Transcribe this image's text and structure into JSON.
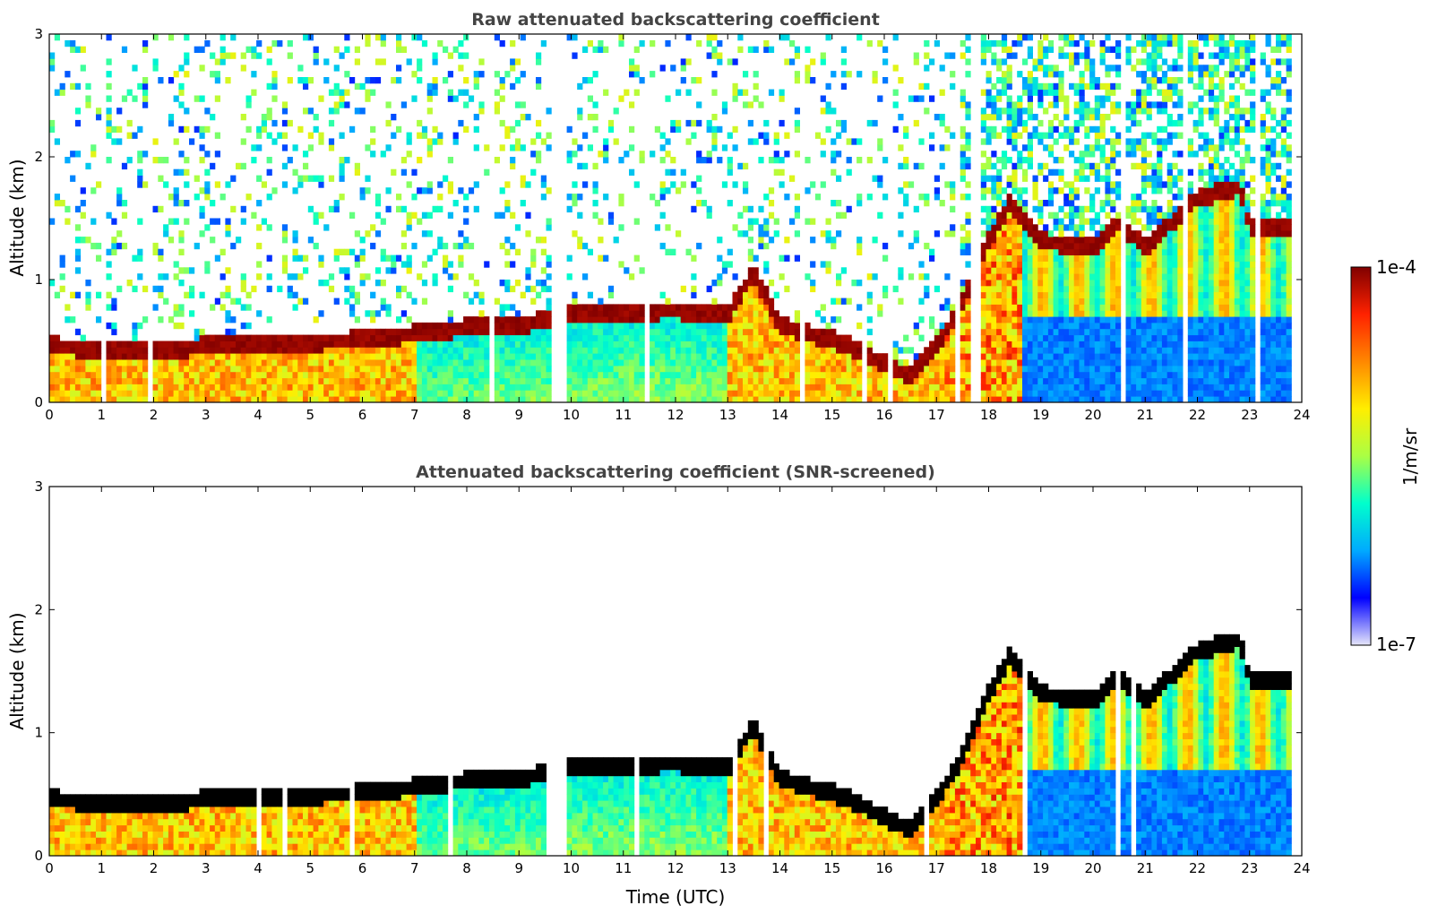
{
  "chart_data": [
    {
      "type": "heatmap",
      "title": "Raw attenuated backscattering coefficient",
      "xlabel": "",
      "ylabel": "Altitude (km)",
      "xlim": [
        0,
        24
      ],
      "ylim": [
        0,
        3
      ],
      "xticks": [
        "0",
        "1",
        "2",
        "3",
        "4",
        "5",
        "6",
        "7",
        "8",
        "9",
        "10",
        "11",
        "12",
        "13",
        "14",
        "15",
        "16",
        "17",
        "18",
        "19",
        "20",
        "21",
        "22",
        "23",
        "24"
      ],
      "yticks": [
        "0",
        "1",
        "2",
        "3"
      ],
      "grid": false,
      "data_end_time": 23.8,
      "cloud_layer_top_km": [
        {
          "t": 0,
          "z": 0.45
        },
        {
          "t": 1,
          "z": 0.42
        },
        {
          "t": 2,
          "z": 0.4
        },
        {
          "t": 3,
          "z": 0.45
        },
        {
          "t": 4,
          "z": 0.45
        },
        {
          "t": 5,
          "z": 0.48
        },
        {
          "t": 6,
          "z": 0.5
        },
        {
          "t": 7,
          "z": 0.55
        },
        {
          "t": 8,
          "z": 0.6
        },
        {
          "t": 9,
          "z": 0.62
        },
        {
          "t": 10,
          "z": 0.7
        },
        {
          "t": 11,
          "z": 0.72
        },
        {
          "t": 12,
          "z": 0.74
        },
        {
          "t": 13,
          "z": 0.7
        },
        {
          "t": 13.5,
          "z": 1.05
        },
        {
          "t": 14,
          "z": 0.62
        },
        {
          "t": 15,
          "z": 0.5
        },
        {
          "t": 15.5,
          "z": 0.42
        },
        {
          "t": 16,
          "z": 0.3
        },
        {
          "t": 16.5,
          "z": 0.2
        },
        {
          "t": 17,
          "z": 0.45
        },
        {
          "t": 17.5,
          "z": 0.8
        },
        {
          "t": 18,
          "z": 1.3
        },
        {
          "t": 18.4,
          "z": 1.6
        },
        {
          "t": 19,
          "z": 1.3
        },
        {
          "t": 20,
          "z": 1.25
        },
        {
          "t": 20.5,
          "z": 1.45
        },
        {
          "t": 21,
          "z": 1.25
        },
        {
          "t": 22,
          "z": 1.65
        },
        {
          "t": 22.8,
          "z": 1.75
        },
        {
          "t": 23,
          "z": 1.42
        },
        {
          "t": 23.8,
          "z": 1.4
        }
      ]
    },
    {
      "type": "heatmap",
      "title": "Attenuated backscattering coefficient (SNR-screened)",
      "xlabel": "Time (UTC)",
      "ylabel": "Altitude (km)",
      "xlim": [
        0,
        24
      ],
      "ylim": [
        0,
        3
      ],
      "xticks": [
        "0",
        "1",
        "2",
        "3",
        "4",
        "5",
        "6",
        "7",
        "8",
        "9",
        "10",
        "11",
        "12",
        "13",
        "14",
        "15",
        "16",
        "17",
        "18",
        "19",
        "20",
        "21",
        "22",
        "23",
        "24"
      ],
      "yticks": [
        "0",
        "1",
        "2",
        "3"
      ],
      "grid": false
    }
  ],
  "colorbar": {
    "max_label": "1e-4",
    "min_label": "1e-7",
    "unit_label": "1/m/sr",
    "colormap": [
      "#e6e6fa",
      "#0000ff",
      "#00aaff",
      "#00ffcc",
      "#aaff44",
      "#ffee00",
      "#ff8800",
      "#ff2200",
      "#800000"
    ]
  }
}
